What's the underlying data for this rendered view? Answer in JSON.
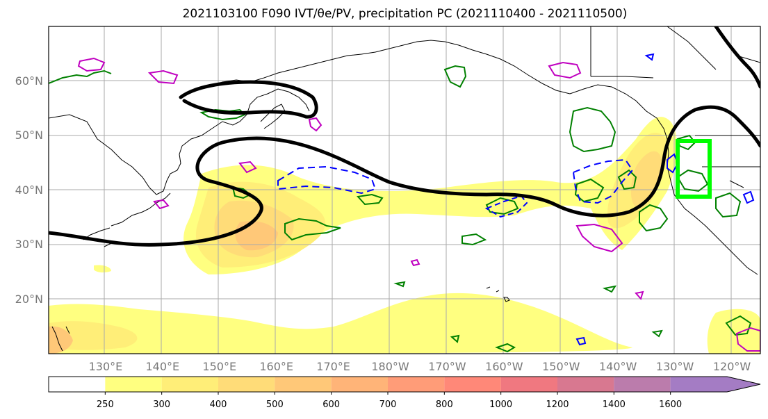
{
  "title": "2021103100 F090 IVT/θe/PV, precipitation PC (2021110400 - 2021110500)",
  "map": {
    "projection": "PlateCarree",
    "lon_range": [
      120,
      245
    ],
    "lat_range": [
      10,
      70
    ],
    "lat_labels": [
      "60°N",
      "50°N",
      "40°N",
      "30°N",
      "20°N"
    ],
    "lon_labels": [
      "130°E",
      "140°E",
      "150°E",
      "160°E",
      "170°E",
      "180°W",
      "170°W",
      "160°W",
      "150°W",
      "140°W",
      "130°W",
      "120°W"
    ],
    "box_color": "#00ff00"
  },
  "colorbar": {
    "ticks": [
      "250",
      "300",
      "400",
      "500",
      "600",
      "700",
      "800",
      "1000",
      "1200",
      "1400",
      "1600"
    ],
    "colors": [
      "#ffff80",
      "#ffee78",
      "#ffdc78",
      "#ffc878",
      "#ffb478",
      "#ff9c78",
      "#ff8878",
      "#f07880",
      "#d87890",
      "#bb7cac",
      "#a47cc4"
    ],
    "extend": "max"
  }
}
